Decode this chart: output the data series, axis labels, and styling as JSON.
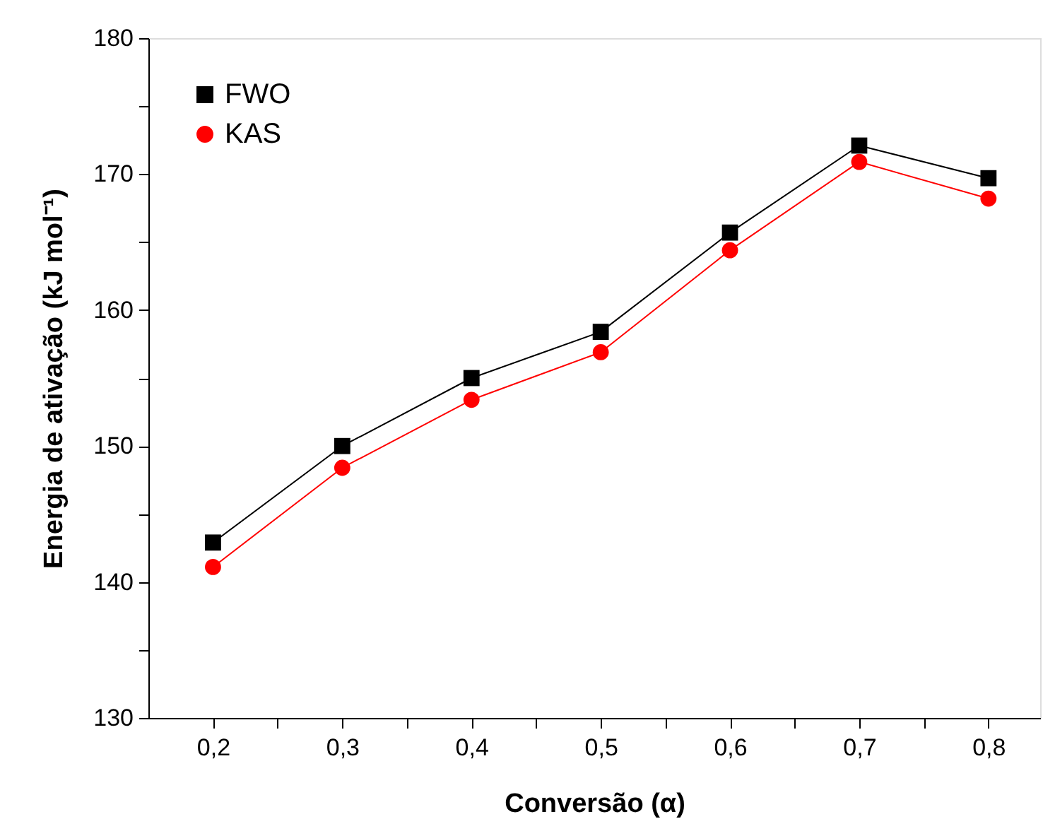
{
  "chart_data": {
    "type": "line",
    "xlabel": "Conversão (α)",
    "ylabel": "Energia de ativação (kJ mol⁻¹)",
    "x": [
      0.2,
      0.3,
      0.4,
      0.5,
      0.6,
      0.7,
      0.8
    ],
    "series": [
      {
        "name": "FWO",
        "color": "#000000",
        "marker": "square",
        "values": [
          142.9,
          150.0,
          155.0,
          158.4,
          165.7,
          172.1,
          169.7
        ]
      },
      {
        "name": "KAS",
        "color": "#ff0000",
        "marker": "circle",
        "values": [
          141.1,
          148.4,
          153.4,
          156.9,
          164.4,
          170.9,
          168.2
        ]
      }
    ],
    "xlim": [
      0.15,
      0.84
    ],
    "xticks": [
      {
        "value": 0.2,
        "label": "0,2"
      },
      {
        "value": 0.25,
        "label": null
      },
      {
        "value": 0.3,
        "label": "0,3"
      },
      {
        "value": 0.35,
        "label": null
      },
      {
        "value": 0.4,
        "label": "0,4"
      },
      {
        "value": 0.45,
        "label": null
      },
      {
        "value": 0.5,
        "label": "0,5"
      },
      {
        "value": 0.55,
        "label": null
      },
      {
        "value": 0.6,
        "label": "0,6"
      },
      {
        "value": 0.65,
        "label": null
      },
      {
        "value": 0.7,
        "label": "0,7"
      },
      {
        "value": 0.75,
        "label": null
      },
      {
        "value": 0.8,
        "label": "0,8"
      }
    ],
    "ylim": [
      130,
      180
    ],
    "yticks": [
      130,
      {
        "value": 135,
        "label": null
      },
      140,
      {
        "value": 145,
        "label": null
      },
      150,
      {
        "value": 155,
        "label": null
      },
      160,
      {
        "value": 165,
        "label": null
      },
      170,
      {
        "value": 175,
        "label": null
      },
      180
    ],
    "legend": "top left",
    "grid": false,
    "line_style": "solid"
  }
}
